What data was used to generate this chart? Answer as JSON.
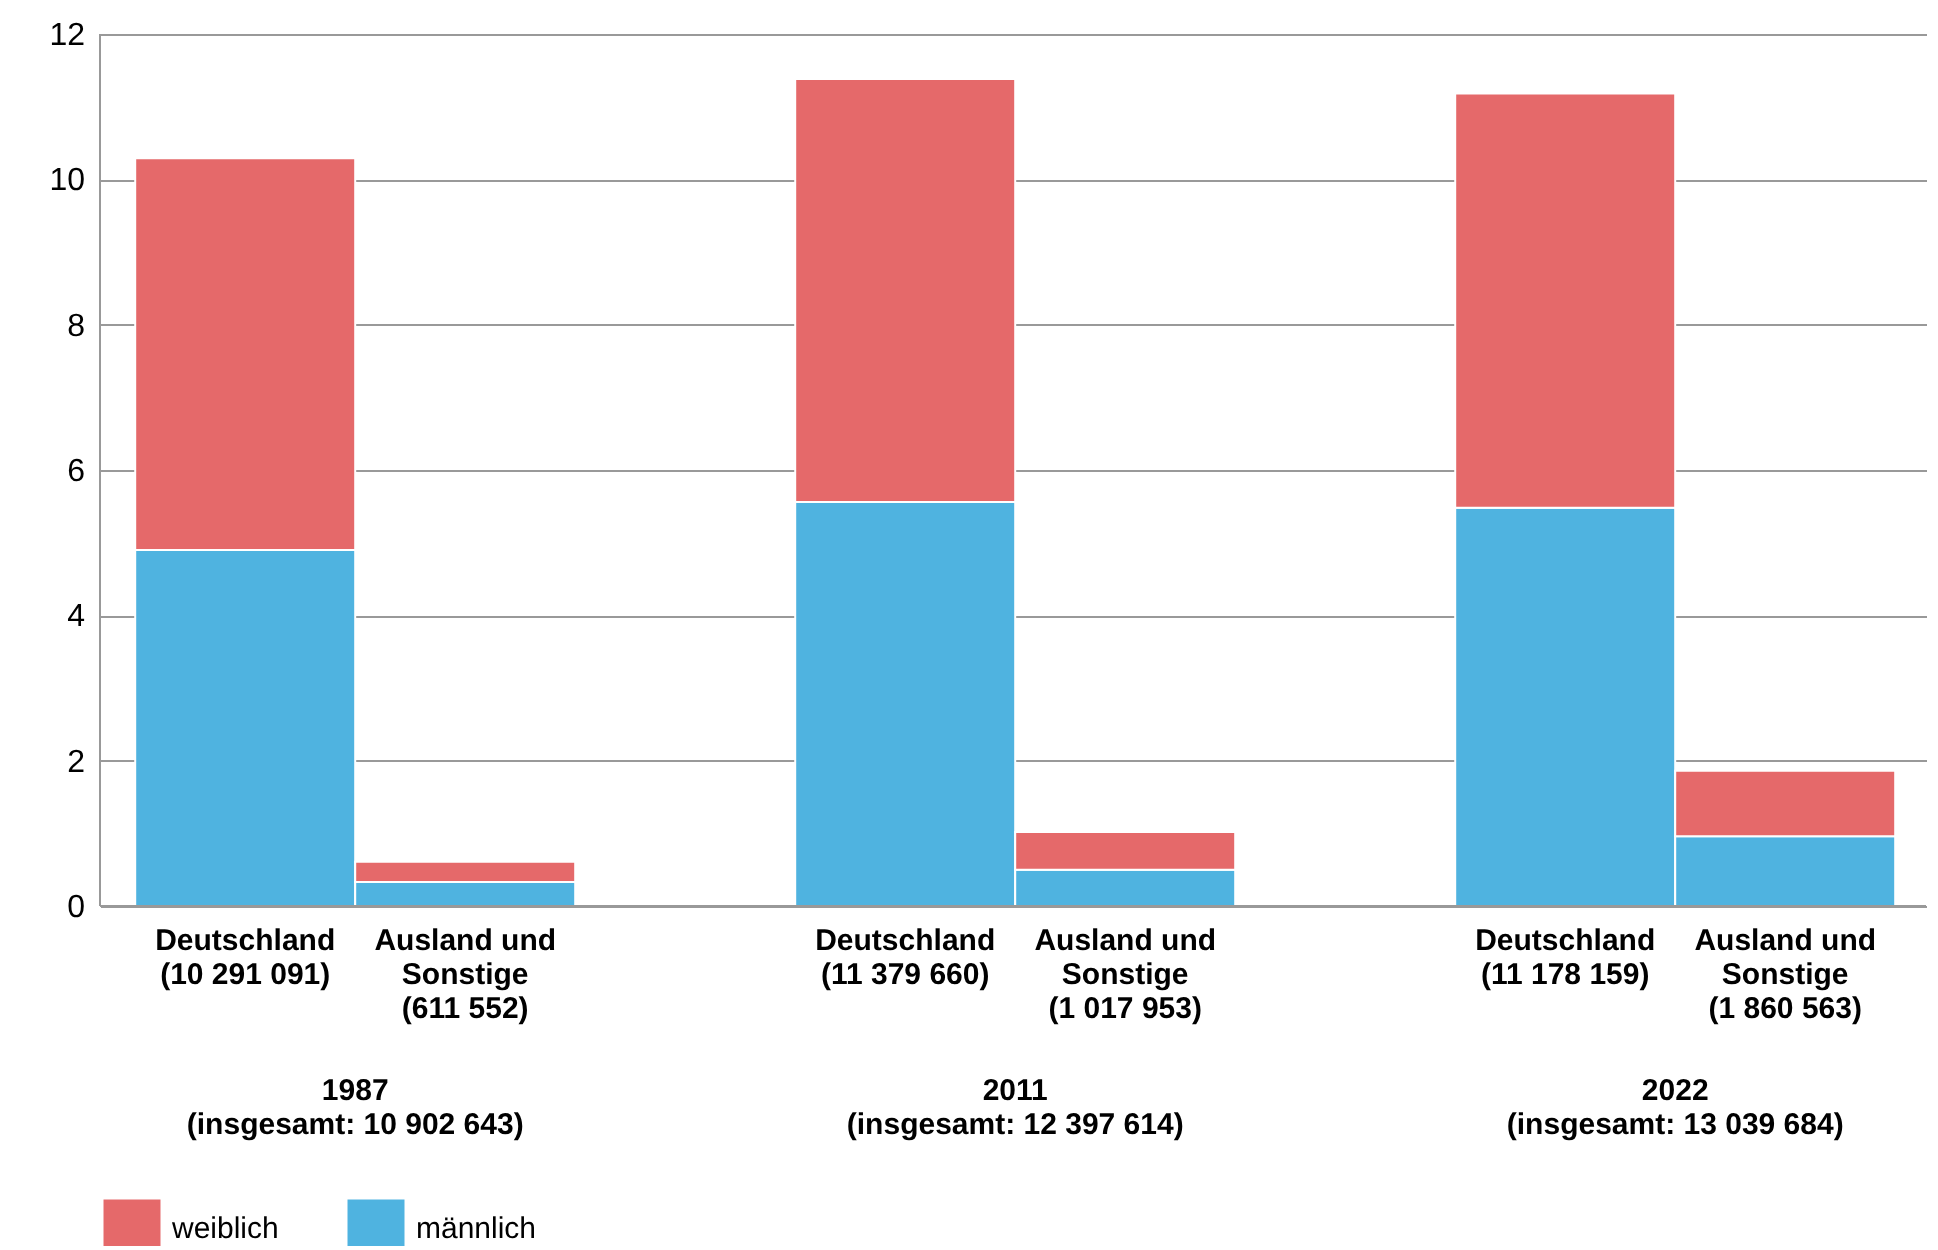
{
  "chart_data": {
    "type": "bar",
    "stacked": true,
    "categories": [
      "Deutschland\n(10 291 091)",
      "Ausland und\nSonstige\n(611 552)",
      "Deutschland\n(11 379 660)",
      "Ausland und\nSonstige\n(1 017 953)",
      "Deutschland\n(11 178 159)",
      "Ausland und\nSonstige\n(1 860 563)"
    ],
    "series": [
      {
        "name": "männlich",
        "color": "#4fb3e0",
        "values": [
          4.9,
          0.33,
          5.56,
          0.5,
          5.48,
          0.96
        ]
      },
      {
        "name": "weiblich",
        "color": "#e5696a",
        "values": [
          5.39,
          0.28,
          5.82,
          0.52,
          5.7,
          0.9
        ]
      }
    ],
    "annotations": [
      "1987\n(insgesamt: 10 902 643)",
      "2011\n(insgesamt: 12 397 614)",
      "2022\n(insgesamt: 13 039 684)"
    ],
    "ylim": [
      0,
      12
    ],
    "yticks": [
      0,
      2,
      4,
      6,
      8,
      10,
      12
    ],
    "grid": "y",
    "legend": "bottom left"
  }
}
